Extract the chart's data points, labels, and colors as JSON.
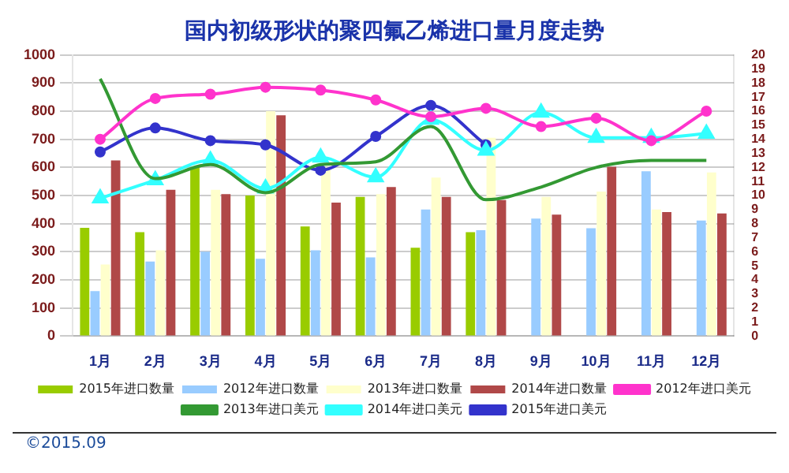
{
  "chart_data": {
    "type": "bar",
    "title": "国内初级形状的聚四氟乙烯进口量月度走势",
    "categories": [
      "1月",
      "2月",
      "3月",
      "4月",
      "5月",
      "6月",
      "7月",
      "8月",
      "9月",
      "10月",
      "11月",
      "12月"
    ],
    "series": [
      {
        "name": "2015年进口数量",
        "color": "#99cc00",
        "values": [
          385,
          370,
          600,
          500,
          390,
          495,
          314,
          370,
          null,
          null,
          null,
          null
        ]
      },
      {
        "name": "2012年进口数量",
        "color": "#99ccff",
        "values": [
          160,
          265,
          300,
          275,
          305,
          280,
          450,
          377,
          418,
          384,
          586,
          411
        ]
      },
      {
        "name": "2013年进口数量",
        "color": "#ffffcc",
        "values": [
          255,
          305,
          520,
          800,
          600,
          505,
          564,
          705,
          495,
          514,
          450,
          582
        ]
      },
      {
        "name": "2014年进口数量",
        "color": "#b04848",
        "values": [
          625,
          520,
          505,
          785,
          475,
          530,
          495,
          484,
          432,
          602,
          441,
          436
        ]
      },
      {
        "name": "2012年进口美元",
        "type": "line",
        "axis": "y2",
        "marker": "circle",
        "color": "#ff33cc",
        "values": [
          14.0,
          16.9,
          17.2,
          17.7,
          17.5,
          16.8,
          15.6,
          16.2,
          14.9,
          15.5,
          13.9,
          16.0
        ]
      },
      {
        "name": "2013年进口美元",
        "type": "line",
        "axis": "y2",
        "marker": "none",
        "color": "#339933",
        "values": [
          18.3,
          11.2,
          12.2,
          10.2,
          12.2,
          12.4,
          14.9,
          9.7,
          10.6,
          12.0,
          12.5,
          12.5
        ]
      },
      {
        "name": "2014年进口美元",
        "type": "line",
        "axis": "y2",
        "marker": "triangle",
        "color": "#33ffff",
        "values": [
          9.8,
          11.1,
          12.5,
          10.5,
          12.7,
          11.3,
          15.4,
          13.2,
          15.9,
          14.1,
          14.1,
          14.4
        ]
      },
      {
        "name": "2015年进口美元",
        "type": "line",
        "axis": "y2",
        "marker": "circle",
        "color": "#3333cc",
        "values": [
          13.1,
          14.8,
          13.9,
          13.6,
          11.8,
          14.2,
          16.4,
          13.6,
          null,
          null,
          null,
          null
        ]
      }
    ],
    "ylim": [
      0,
      1000
    ],
    "yticks": [
      0,
      100,
      200,
      300,
      400,
      500,
      600,
      700,
      800,
      900,
      1000
    ],
    "y2lim": [
      0,
      20
    ],
    "y2ticks": [
      0,
      1,
      2,
      3,
      4,
      5,
      6,
      7,
      8,
      9,
      10,
      11,
      12,
      13,
      14,
      15,
      16,
      17,
      18,
      19,
      20
    ],
    "grid": "y",
    "legend": "bottom",
    "annotations": [
      "©2015.09"
    ]
  }
}
